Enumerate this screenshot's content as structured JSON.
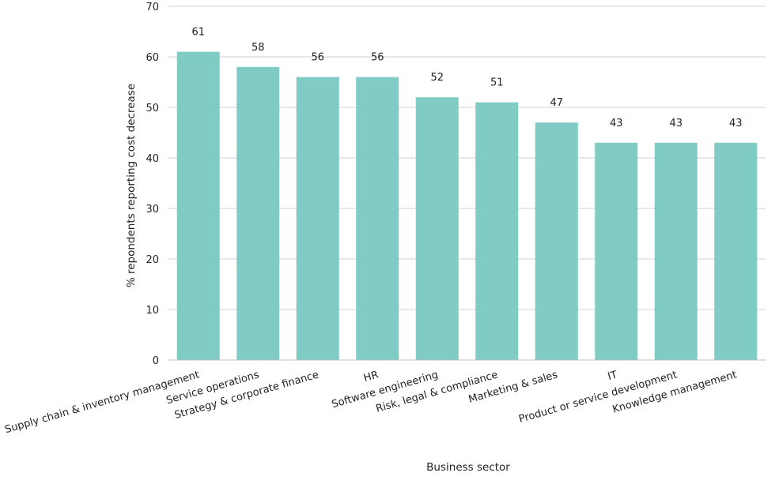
{
  "chart_data": {
    "type": "bar",
    "categories": [
      "Supply chain & inventory management",
      "Service operations",
      "Strategy & corporate finance",
      "HR",
      "Software engineering",
      "Risk, legal & compliance",
      "Marketing & sales",
      "IT",
      "Product or service development",
      "Knowledge management"
    ],
    "values": [
      61,
      58,
      56,
      56,
      52,
      51,
      47,
      43,
      43,
      43
    ],
    "xlabel": "Business sector",
    "ylabel": "% repondents reporting cost decrease",
    "ylim": [
      0,
      70
    ],
    "yticks": [
      0,
      10,
      20,
      30,
      40,
      50,
      60,
      70
    ],
    "grid": "horizontal",
    "bar_color": "#80cbc4"
  }
}
